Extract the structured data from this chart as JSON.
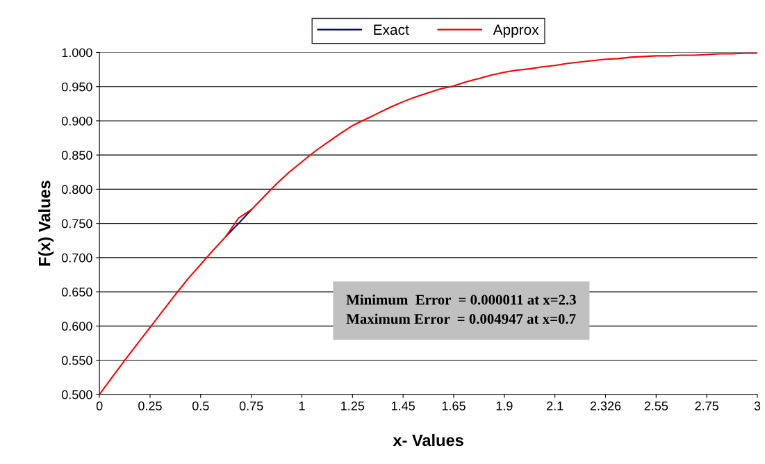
{
  "chart_data": {
    "type": "line",
    "xlabel": "x- Values",
    "ylabel": "F(x) Values",
    "categories": [
      "0",
      null,
      null,
      null,
      "0.25",
      null,
      null,
      null,
      "0.5",
      null,
      null,
      null,
      "0.75",
      null,
      null,
      null,
      "1",
      null,
      null,
      null,
      "1.25",
      null,
      null,
      null,
      "1.45",
      null,
      null,
      null,
      "1.65",
      null,
      null,
      null,
      "1.9",
      null,
      null,
      null,
      "2.1",
      null,
      null,
      null,
      "2.326",
      null,
      null,
      null,
      "2.55",
      null,
      null,
      null,
      "2.75",
      null,
      null,
      null,
      "3"
    ],
    "series": [
      {
        "name": "Exact",
        "color": "#000080",
        "values": [
          null,
          null,
          null,
          null,
          null,
          null,
          null,
          null,
          null,
          null,
          0.731,
          0.75,
          0.77,
          null,
          null,
          null,
          null,
          null,
          null,
          null,
          null,
          null,
          null,
          null,
          null,
          null,
          null,
          null,
          null,
          null,
          null,
          null,
          null,
          null,
          null,
          null,
          null,
          null,
          null,
          null,
          null,
          null,
          null,
          null,
          null,
          null,
          null,
          null,
          null,
          null,
          null,
          null,
          null
        ]
      },
      {
        "name": "Approx",
        "color": "#ff0000",
        "values": [
          0.5,
          0.525,
          0.55,
          0.574,
          0.598,
          0.622,
          0.646,
          0.669,
          0.69,
          0.711,
          0.731,
          0.758,
          0.77,
          0.789,
          0.808,
          0.825,
          0.84,
          0.855,
          0.868,
          0.881,
          0.893,
          0.902,
          0.911,
          0.92,
          0.928,
          0.935,
          0.941,
          0.947,
          0.951,
          0.957,
          0.962,
          0.967,
          0.971,
          0.974,
          0.976,
          0.979,
          0.981,
          0.984,
          0.986,
          0.988,
          0.99,
          0.991,
          0.993,
          0.994,
          0.995,
          0.995,
          0.996,
          0.996,
          0.997,
          0.998,
          0.998,
          0.999,
          0.999
        ]
      }
    ],
    "ylim": [
      0.5,
      1.0
    ],
    "yticks": [
      {
        "value": 0.5,
        "label": "0.500"
      },
      {
        "value": 0.55,
        "label": "0.550"
      },
      {
        "value": 0.6,
        "label": "0.600"
      },
      {
        "value": 0.65,
        "label": "0.650"
      },
      {
        "value": 0.7,
        "label": "0.700"
      },
      {
        "value": 0.75,
        "label": "0.750"
      },
      {
        "value": 0.8,
        "label": "0.800"
      },
      {
        "value": 0.85,
        "label": "0.850"
      },
      {
        "value": 0.9,
        "label": "0.900"
      },
      {
        "value": 0.95,
        "label": "0.950"
      },
      {
        "value": 1.0,
        "label": "1.000"
      }
    ],
    "grid": "y",
    "legend": "top",
    "marker": "none",
    "line_style": "solid",
    "annotations": [
      "Minimum  Error  = 0.000011 at x=2.3",
      "Maximum Error  = 0.004947 at x=0.7"
    ]
  }
}
